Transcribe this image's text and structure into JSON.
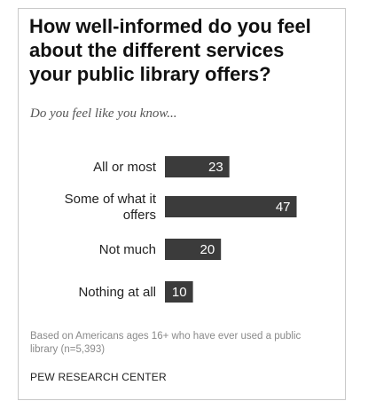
{
  "chart_data": {
    "type": "bar",
    "orientation": "horizontal",
    "title": "How well-informed do you feel about the different services your public library offers?",
    "subtitle": "Do you feel like you know...",
    "categories": [
      "All or most",
      "Some of what it offers",
      "Not much",
      "Nothing at all"
    ],
    "values": [
      23,
      47,
      20,
      10
    ],
    "xlabel": "",
    "ylabel": "",
    "xlim": [
      0,
      50
    ],
    "grid": false,
    "bar_color": "#3b3b3b",
    "value_label_color": "#ffffff"
  },
  "note": "Based on Americans ages 16+ who have ever used a public library (n=5,393)",
  "source": "PEW RESEARCH CENTER"
}
